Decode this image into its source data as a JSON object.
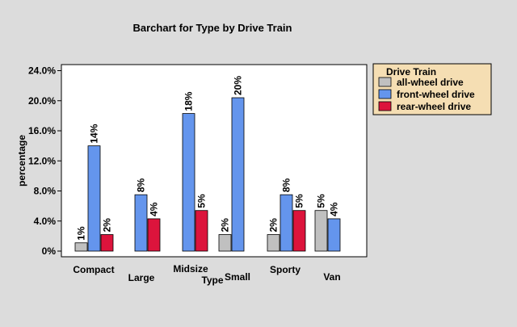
{
  "chart_data": {
    "type": "bar",
    "title": "Barchart for Type by Drive Train",
    "xlabel": "Type",
    "ylabel": "percentage",
    "ylim": [
      0,
      24
    ],
    "yticks": [
      "0%",
      "4.0%",
      "8.0%",
      "12.0%",
      "16.0%",
      "20.0%",
      "24.0%"
    ],
    "ytick_values": [
      0,
      4,
      8,
      12,
      16,
      20,
      24
    ],
    "grid": false,
    "legend": {
      "title": "Drive Train",
      "placement": "top-right, outside plot"
    },
    "categories": [
      "Compact",
      "Large",
      "Midsize",
      "Small",
      "Sporty",
      "Van"
    ],
    "series": [
      {
        "name": "all-wheel drive",
        "color": "#c0c0c0",
        "values": [
          1.1,
          null,
          null,
          2.2,
          2.2,
          5.4
        ],
        "labels": [
          "1%",
          null,
          null,
          "2%",
          "2%",
          "5%"
        ]
      },
      {
        "name": "front-wheel drive",
        "color": "#6495ed",
        "values": [
          14.0,
          7.5,
          18.3,
          20.4,
          7.5,
          4.3
        ],
        "labels": [
          "14%",
          "8%",
          "18%",
          "20%",
          "8%",
          "4%"
        ]
      },
      {
        "name": "rear-wheel drive",
        "color": "#dc143c",
        "values": [
          2.2,
          4.3,
          5.4,
          null,
          5.4,
          null
        ],
        "labels": [
          "2%",
          "4%",
          "5%",
          null,
          "5%",
          null
        ]
      }
    ]
  }
}
